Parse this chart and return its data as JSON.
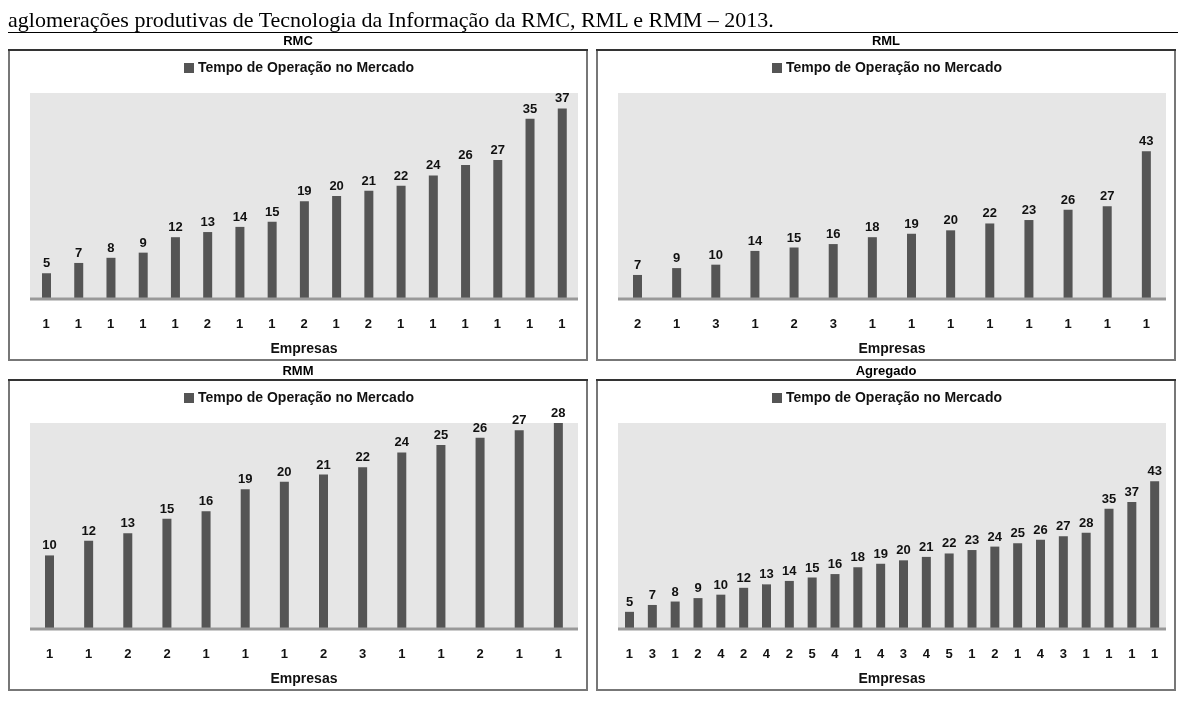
{
  "chart_data": [
    {
      "type": "bar",
      "title": "RMC",
      "annotations": [
        "aglomerações produtivas de Tecnologia da Informação da RMC, RML e RMM – 2013."
      ],
      "xlabel": "Empresas",
      "legend": "top",
      "data_labels": true,
      "categories": [
        "1",
        "1",
        "1",
        "1",
        "1",
        "2",
        "1",
        "1",
        "2",
        "1",
        "2",
        "1",
        "1",
        "1",
        "1",
        "1",
        "1"
      ],
      "series": [
        {
          "name": "Tempo de Operação no Mercado",
          "color": "#555555",
          "values": [
            5,
            7,
            8,
            9,
            12,
            13,
            14,
            15,
            19,
            20,
            21,
            22,
            24,
            26,
            27,
            35,
            37
          ]
        }
      ]
    },
    {
      "type": "bar",
      "title": "RML",
      "xlabel": "Empresas",
      "legend": "top",
      "data_labels": true,
      "categories": [
        "2",
        "1",
        "3",
        "1",
        "2",
        "3",
        "1",
        "1",
        "1",
        "1",
        "1",
        "1",
        "1",
        "1"
      ],
      "series": [
        {
          "name": "Tempo de Operação no Mercado",
          "color": "#555555",
          "values": [
            7,
            9,
            10,
            14,
            15,
            16,
            18,
            19,
            20,
            22,
            23,
            26,
            27,
            43
          ]
        }
      ]
    },
    {
      "type": "bar",
      "title": "RMM",
      "xlabel": "Empresas",
      "legend": "top",
      "data_labels": true,
      "categories": [
        "1",
        "1",
        "2",
        "2",
        "1",
        "1",
        "1",
        "2",
        "3",
        "1",
        "1",
        "2",
        "1",
        "1"
      ],
      "series": [
        {
          "name": "Tempo de Operação no Mercado",
          "color": "#555555",
          "values": [
            10,
            12,
            13,
            15,
            16,
            19,
            20,
            21,
            22,
            24,
            25,
            26,
            27,
            28
          ]
        }
      ]
    },
    {
      "type": "bar",
      "title": "Agregado",
      "xlabel": "Empresas",
      "legend": "top",
      "data_labels": true,
      "categories": [
        "1",
        "3",
        "1",
        "2",
        "4",
        "2",
        "4",
        "2",
        "5",
        "4",
        "1",
        "4",
        "3",
        "4",
        "5",
        "1",
        "2",
        "1",
        "4",
        "3",
        "1",
        "1",
        "1",
        "1"
      ],
      "series": [
        {
          "name": "Tempo de Operação no Mercado",
          "color": "#555555",
          "values": [
            5,
            7,
            8,
            9,
            10,
            12,
            13,
            14,
            15,
            16,
            18,
            19,
            20,
            21,
            22,
            23,
            24,
            25,
            26,
            27,
            28,
            35,
            37,
            43
          ]
        }
      ]
    }
  ]
}
